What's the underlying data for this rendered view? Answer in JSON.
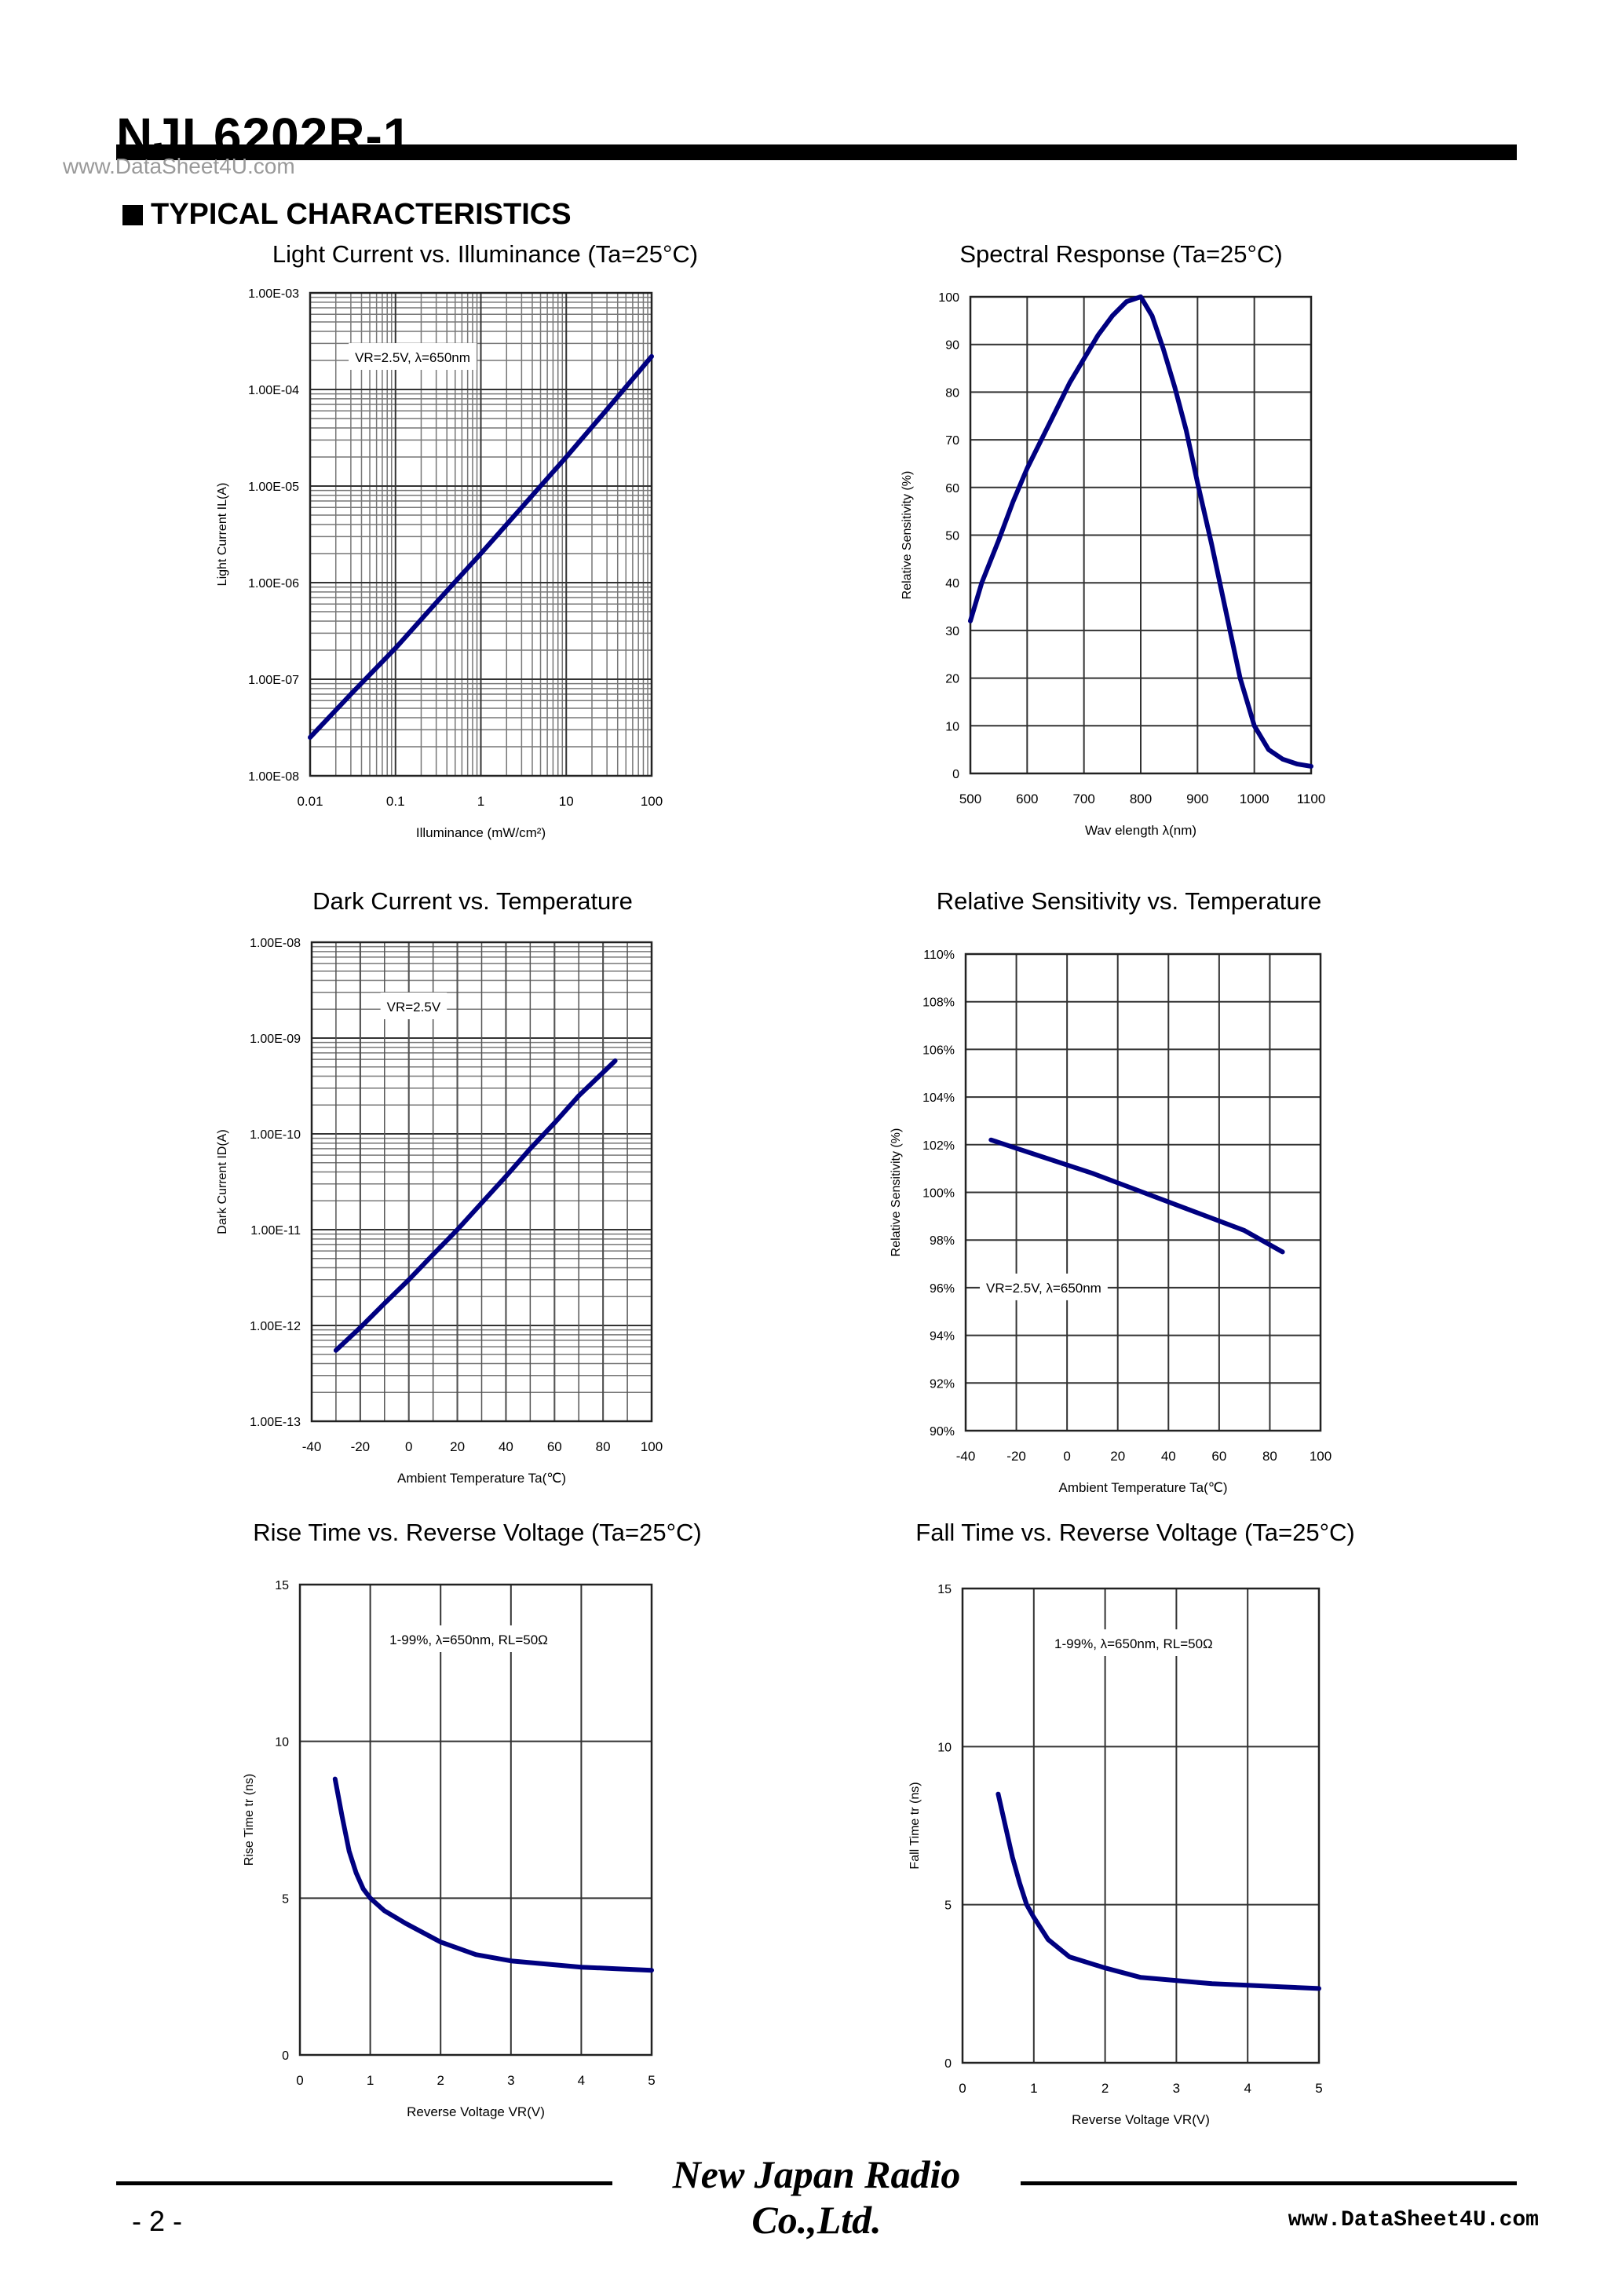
{
  "header": {
    "part_number": "NJL6202R-1",
    "watermark_top": "www.DataSheet4U.com",
    "section_title": "TYPICAL CHARACTERISTICS"
  },
  "footer": {
    "brand": "New Japan Radio Co.,Ltd.",
    "page": "- 2 -",
    "watermark_bottom": "www.DataSheet4U.com"
  },
  "chart_data": [
    {
      "id": "light-current",
      "type": "line",
      "title": "Light Current vs. Illuminance (Ta=25°C)",
      "xlabel": "Illuminance (mW/cm²)",
      "ylabel": "Light Current IL(A)",
      "xscale": "log",
      "yscale": "log",
      "xlim": [
        0.01,
        100
      ],
      "ylim": [
        1e-08,
        0.001
      ],
      "xticks": [
        0.01,
        0.1,
        1,
        10,
        100
      ],
      "xtick_labels": [
        "0.01",
        "0.1",
        "1",
        "10",
        "100"
      ],
      "yticks": [
        1e-08,
        1e-07,
        1e-06,
        1e-05,
        0.0001,
        0.001
      ],
      "ytick_labels": [
        "1.00E-08",
        "1.00E-07",
        "1.00E-06",
        "1.00E-05",
        "1.00E-04",
        "1.00E-03"
      ],
      "grid": "log-minor",
      "annotation": "VR=2.5V, λ=650nm",
      "series": [
        {
          "color": "#000080",
          "x": [
            0.01,
            0.03,
            0.1,
            0.3,
            1,
            3,
            10,
            30,
            100
          ],
          "y": [
            2.5e-08,
            7e-08,
            2.1e-07,
            6.2e-07,
            2e-06,
            6e-06,
            2e-05,
            6.2e-05,
            0.00022
          ]
        }
      ]
    },
    {
      "id": "spectral-response",
      "type": "line",
      "title": "Spectral Response (Ta=25°C)",
      "xlabel": "Wav elength λ(nm)",
      "ylabel": "Relative Sensitivity (%)",
      "xlim": [
        500,
        1100
      ],
      "ylim": [
        0,
        100
      ],
      "xticks": [
        500,
        600,
        700,
        800,
        900,
        1000,
        1100
      ],
      "xtick_labels": [
        "500",
        "600",
        "700",
        "800",
        "900",
        "1000",
        "1100"
      ],
      "yticks": [
        0,
        10,
        20,
        30,
        40,
        50,
        60,
        70,
        80,
        90,
        100
      ],
      "ytick_labels": [
        "0",
        "10",
        "20",
        "30",
        "40",
        "50",
        "60",
        "70",
        "80",
        "90",
        "100"
      ],
      "grid": "major",
      "series": [
        {
          "color": "#000080",
          "x": [
            500,
            520,
            550,
            575,
            600,
            625,
            650,
            675,
            700,
            725,
            750,
            775,
            800,
            820,
            840,
            860,
            880,
            900,
            925,
            950,
            975,
            1000,
            1025,
            1050,
            1075,
            1100
          ],
          "y": [
            32,
            40,
            49,
            57,
            64,
            70,
            76,
            82,
            87,
            92,
            96,
            99,
            100,
            96,
            89,
            81,
            72,
            61,
            48,
            34,
            20,
            10,
            5,
            3,
            2,
            1.5
          ]
        }
      ]
    },
    {
      "id": "dark-current",
      "type": "line",
      "title": "Dark Current vs. Temperature",
      "xlabel": "Ambient Temperature Ta(℃)",
      "ylabel": "Dark Current ID(A)",
      "yscale": "log",
      "xlim": [
        -40,
        100
      ],
      "ylim": [
        1e-13,
        1e-08
      ],
      "xticks": [
        -40,
        -20,
        0,
        20,
        40,
        60,
        80,
        100
      ],
      "xtick_labels": [
        "-40",
        "-20",
        "0",
        "20",
        "40",
        "60",
        "80",
        "100"
      ],
      "yticks": [
        1e-13,
        1e-12,
        1e-11,
        1e-10,
        1e-09,
        1e-08
      ],
      "ytick_labels": [
        "1.00E-13",
        "1.00E-12",
        "1.00E-11",
        "1.00E-10",
        "1.00E-09",
        "1.00E-08"
      ],
      "grid": "log-minor-y",
      "annotation": "VR=2.5V",
      "series": [
        {
          "color": "#000080",
          "x": [
            -30,
            -20,
            -10,
            0,
            10,
            20,
            30,
            40,
            50,
            60,
            70,
            85
          ],
          "y": [
            5.5e-13,
            9.5e-13,
            1.7e-12,
            3e-12,
            5.5e-12,
            1e-11,
            1.9e-11,
            3.6e-11,
            7e-11,
            1.3e-10,
            2.5e-10,
            5.8e-10
          ]
        }
      ]
    },
    {
      "id": "relative-sensitivity",
      "type": "line",
      "title": "Relative Sensitivity vs. Temperature",
      "xlabel": "Ambient Temperature Ta(℃)",
      "ylabel": "Relative Sensitivity (%)",
      "xlim": [
        -40,
        100
      ],
      "ylim": [
        90,
        110
      ],
      "xticks": [
        -40,
        -20,
        0,
        20,
        40,
        60,
        80,
        100
      ],
      "xtick_labels": [
        "-40",
        "-20",
        "0",
        "20",
        "40",
        "60",
        "80",
        "100"
      ],
      "yticks": [
        90,
        92,
        94,
        96,
        98,
        100,
        102,
        104,
        106,
        108,
        110
      ],
      "ytick_labels": [
        "90%",
        "92%",
        "94%",
        "96%",
        "98%",
        "100%",
        "102%",
        "104%",
        "106%",
        "108%",
        "110%"
      ],
      "grid": "major",
      "annotation": "VR=2.5V, λ=650nm",
      "series": [
        {
          "color": "#000080",
          "x": [
            -30,
            -10,
            10,
            30,
            50,
            70,
            85
          ],
          "y": [
            102.2,
            101.5,
            100.8,
            100.0,
            99.2,
            98.4,
            97.5
          ]
        }
      ]
    },
    {
      "id": "rise-time",
      "type": "line",
      "title": "Rise Time vs. Reverse Voltage (Ta=25°C)",
      "xlabel": "Reverse Voltage VR(V)",
      "ylabel": "Rise Time tr (ns)",
      "xlim": [
        0,
        5
      ],
      "ylim": [
        0,
        15
      ],
      "xticks": [
        0,
        1,
        2,
        3,
        4,
        5
      ],
      "xtick_labels": [
        "0",
        "1",
        "2",
        "3",
        "4",
        "5"
      ],
      "yticks": [
        0,
        5,
        10,
        15
      ],
      "ytick_labels": [
        "0",
        "5",
        "10",
        "15"
      ],
      "grid": "major",
      "annotation": "1-99%, λ=650nm, RL=50Ω",
      "series": [
        {
          "color": "#000080",
          "x": [
            0.5,
            0.6,
            0.7,
            0.8,
            0.9,
            1.0,
            1.2,
            1.5,
            2.0,
            2.5,
            3.0,
            3.5,
            4.0,
            4.5,
            5.0
          ],
          "y": [
            8.8,
            7.6,
            6.5,
            5.8,
            5.3,
            5.0,
            4.6,
            4.2,
            3.6,
            3.2,
            3.0,
            2.9,
            2.8,
            2.75,
            2.7
          ]
        }
      ]
    },
    {
      "id": "fall-time",
      "type": "line",
      "title": "Fall Time vs. Reverse Voltage (Ta=25°C)",
      "xlabel": "Reverse Voltage VR(V)",
      "ylabel": "Fall Time tr (ns)",
      "xlim": [
        0,
        5
      ],
      "ylim": [
        0,
        15
      ],
      "xticks": [
        0,
        1,
        2,
        3,
        4,
        5
      ],
      "xtick_labels": [
        "0",
        "1",
        "2",
        "3",
        "4",
        "5"
      ],
      "yticks": [
        0,
        5,
        10,
        15
      ],
      "ytick_labels": [
        "0",
        "5",
        "10",
        "15"
      ],
      "grid": "major",
      "annotation": "1-99%, λ=650nm, RL=50Ω",
      "series": [
        {
          "color": "#000080",
          "x": [
            0.5,
            0.6,
            0.7,
            0.8,
            0.9,
            1.0,
            1.2,
            1.5,
            2.0,
            2.5,
            3.0,
            3.5,
            4.0,
            4.5,
            5.0
          ],
          "y": [
            8.5,
            7.5,
            6.5,
            5.7,
            5.0,
            4.6,
            3.9,
            3.35,
            3.0,
            2.7,
            2.6,
            2.5,
            2.45,
            2.4,
            2.35
          ]
        }
      ]
    }
  ]
}
